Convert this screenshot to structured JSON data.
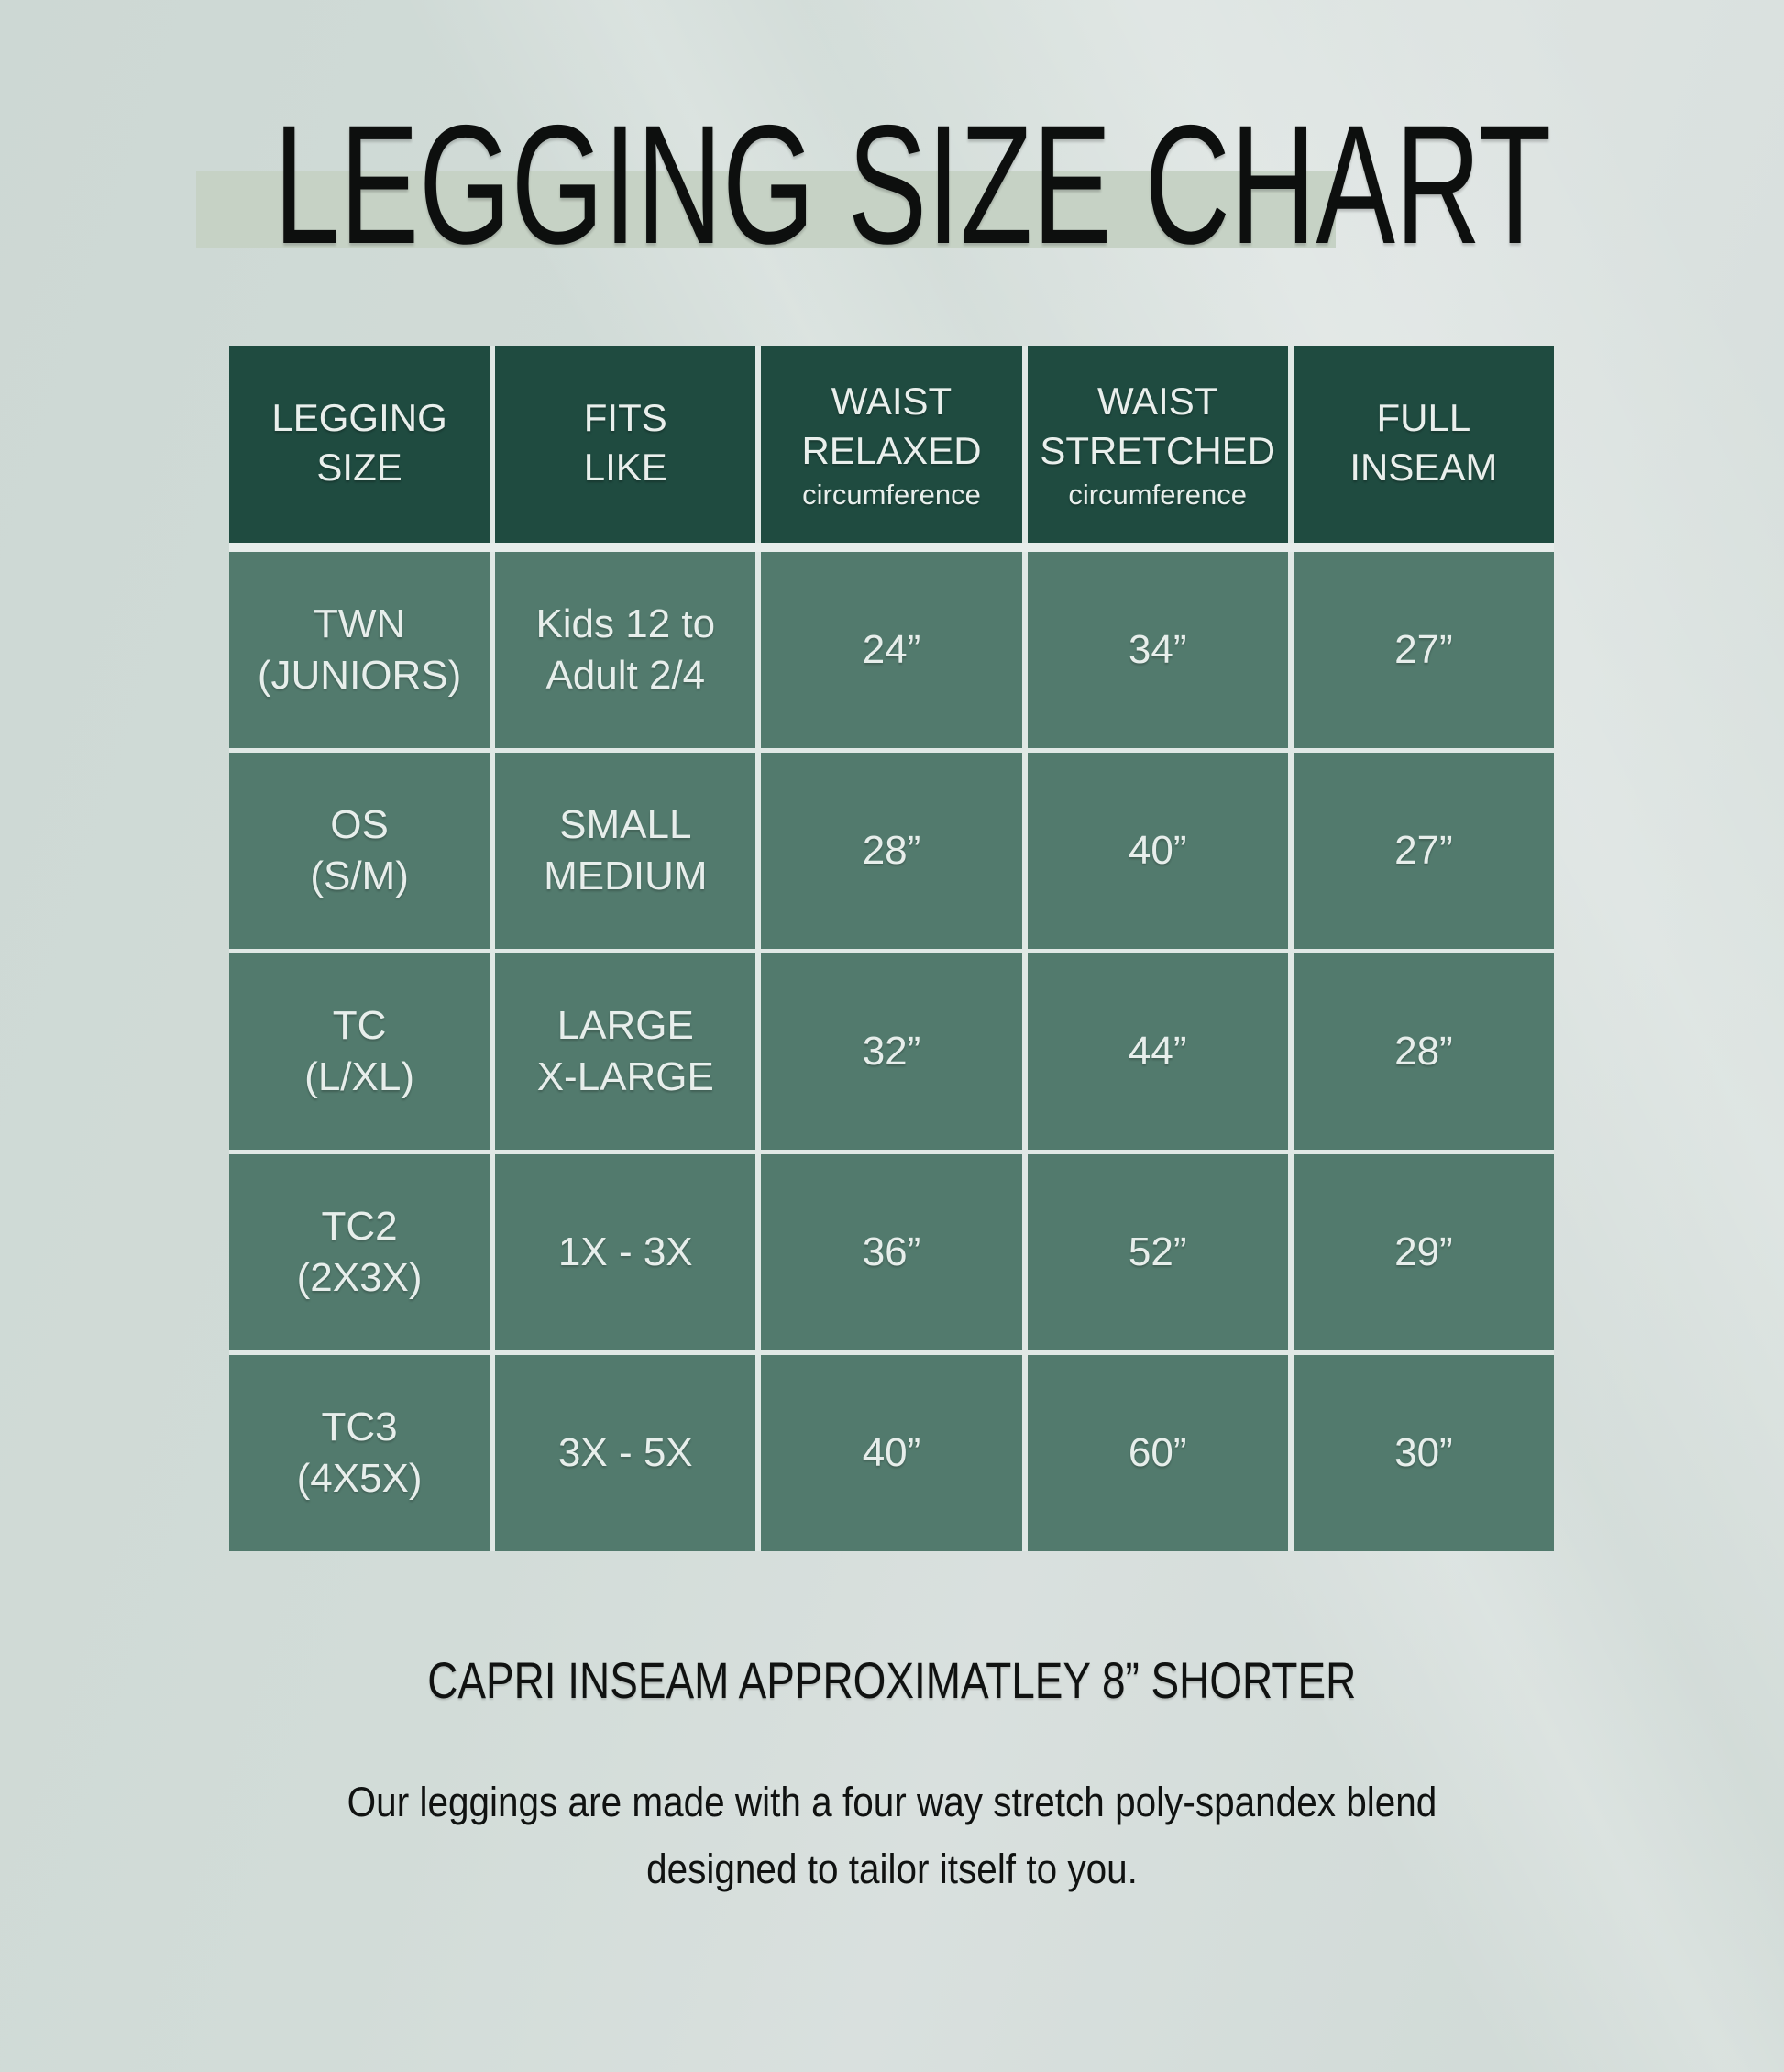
{
  "title": "LEGGING SIZE CHART",
  "table": {
    "headers": [
      {
        "label": "LEGGING\nSIZE",
        "sub": ""
      },
      {
        "label": "FITS\nLIKE",
        "sub": ""
      },
      {
        "label": "WAIST\nRELAXED",
        "sub": "circumference"
      },
      {
        "label": "WAIST\nSTRETCHED",
        "sub": "circumference"
      },
      {
        "label": "FULL\nINSEAM",
        "sub": ""
      }
    ],
    "rows": [
      {
        "cells": [
          "TWN\n(JUNIORS)",
          "Kids 12 to\nAdult 2/4",
          "24”",
          "34”",
          "27”"
        ]
      },
      {
        "cells": [
          "OS\n(S/M)",
          "SMALL\nMEDIUM",
          "28”",
          "40”",
          "27”"
        ]
      },
      {
        "cells": [
          "TC\n(L/XL)",
          "LARGE\nX-LARGE",
          "32”",
          "44”",
          "28”"
        ]
      },
      {
        "cells": [
          "TC2\n(2X3X)",
          "1X - 3X",
          "36”",
          "52”",
          "29”"
        ]
      },
      {
        "cells": [
          "TC3\n(4X5X)",
          "3X - 5X",
          "40”",
          "60”",
          "30”"
        ]
      }
    ]
  },
  "notes": {
    "capri": "CAPRI INSEAM APPROXIMATLEY 8” SHORTER",
    "fabric": "Our leggings are made with a four way stretch poly-spandex blend\ndesigned to tailor itself to you."
  },
  "colors": {
    "header_bg": "#1f4b40",
    "cell_bg": "#527a6d",
    "grid_line": "#e0e8e5",
    "title_band": "#c6d2c5",
    "page_bg": "#d2dcd8",
    "cell_text": "#e7eeeb",
    "dark_text": "#101211"
  },
  "chart_data": {
    "type": "table",
    "title": "LEGGING SIZE CHART",
    "columns": [
      "LEGGING SIZE",
      "FITS LIKE",
      "WAIST RELAXED circumference",
      "WAIST STRETCHED circumference",
      "FULL INSEAM"
    ],
    "rows": [
      [
        "TWN (JUNIORS)",
        "Kids 12 to Adult 2/4",
        "24”",
        "34”",
        "27”"
      ],
      [
        "OS (S/M)",
        "SMALL MEDIUM",
        "28”",
        "40”",
        "27”"
      ],
      [
        "TC (L/XL)",
        "LARGE X-LARGE",
        "32”",
        "44”",
        "28”"
      ],
      [
        "TC2 (2X3X)",
        "1X - 3X",
        "36”",
        "52”",
        "29”"
      ],
      [
        "TC3 (4X5X)",
        "3X - 5X",
        "40”",
        "60”",
        "30”"
      ]
    ],
    "notes": [
      "CAPRI INSEAM APPROXIMATLEY 8” SHORTER",
      "Our leggings are made with a four way stretch poly-spandex blend designed to tailor itself to you."
    ]
  }
}
